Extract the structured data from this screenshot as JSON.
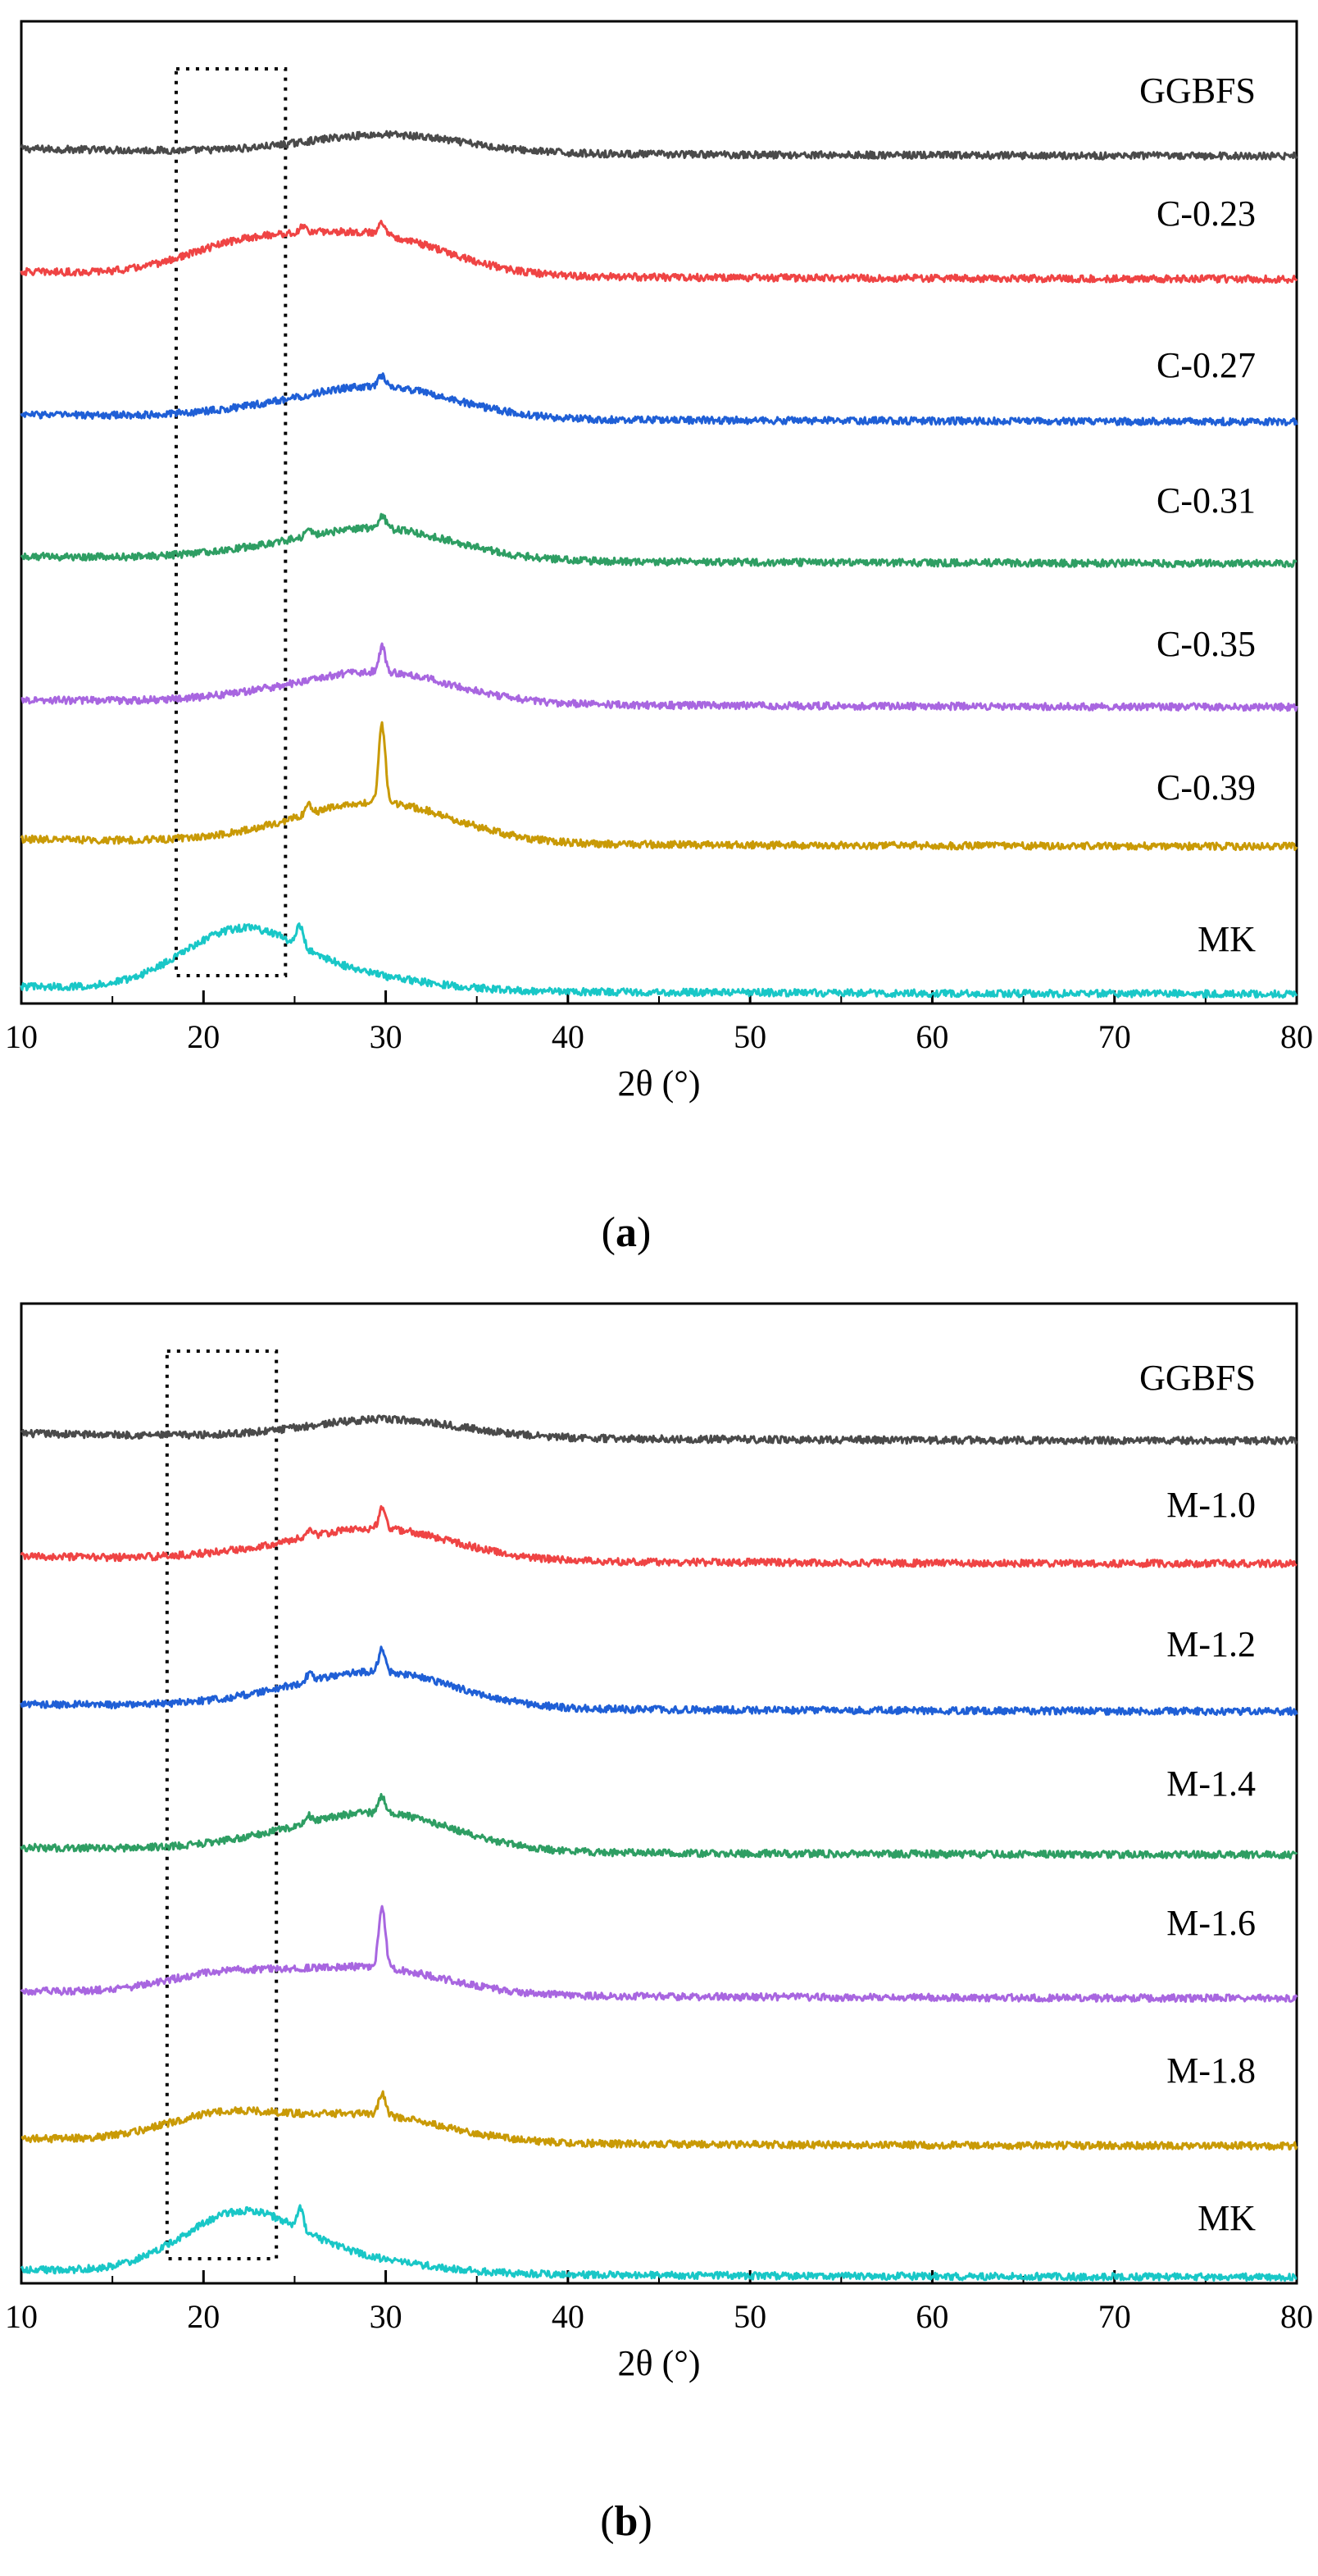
{
  "chart_data": [
    {
      "type": "line",
      "panel_label": "a",
      "xlabel": "2θ (°)",
      "ylabel": "",
      "xlim": [
        10,
        80
      ],
      "xticks": [
        10,
        20,
        30,
        40,
        50,
        60,
        70,
        80
      ],
      "y_ticks_shown": false,
      "grid": false,
      "legend": "none (labels placed beside each trace)",
      "highlight_box": {
        "x_range": [
          18.5,
          24.5
        ],
        "style": "dotted"
      },
      "series": [
        {
          "name": "GGBFS",
          "color": "#4a4a4a",
          "baseline": 0.0,
          "hump": {
            "center": 30,
            "height": 0.4
          },
          "low_hump": {
            "center": 22,
            "height": 0.0
          },
          "peaks": []
        },
        {
          "name": "C-0.23",
          "color": "#ef4444",
          "baseline": 0.0,
          "hump": {
            "center": 29,
            "height": 0.9
          },
          "low_hump": {
            "center": 22,
            "height": 0.55
          },
          "peaks": [
            {
              "x": 29.8,
              "height": 0.3
            },
            {
              "x": 25.5,
              "height": 0.15
            }
          ]
        },
        {
          "name": "C-0.27",
          "color": "#1f5fd6",
          "baseline": 0.0,
          "hump": {
            "center": 29.5,
            "height": 0.7
          },
          "low_hump": {
            "center": 22,
            "height": 0.08
          },
          "peaks": [
            {
              "x": 29.8,
              "height": 0.25
            }
          ]
        },
        {
          "name": "C-0.31",
          "color": "#2e9e63",
          "baseline": 0.0,
          "hump": {
            "center": 29.5,
            "height": 0.7
          },
          "low_hump": {
            "center": 22,
            "height": 0.1
          },
          "peaks": [
            {
              "x": 29.8,
              "height": 0.3
            },
            {
              "x": 25.8,
              "height": 0.15
            }
          ]
        },
        {
          "name": "C-0.35",
          "color": "#a866e0",
          "baseline": 0.0,
          "hump": {
            "center": 29.5,
            "height": 0.7
          },
          "low_hump": {
            "center": 22,
            "height": 0.08
          },
          "peaks": [
            {
              "x": 29.8,
              "height": 0.55
            }
          ]
        },
        {
          "name": "C-0.39",
          "color": "#c99a06",
          "baseline": 0.0,
          "hump": {
            "center": 29.5,
            "height": 0.9
          },
          "low_hump": {
            "center": 22,
            "height": 0.05
          },
          "peaks": [
            {
              "x": 29.8,
              "height": 1.7
            },
            {
              "x": 25.8,
              "height": 0.2
            }
          ]
        },
        {
          "name": "MK",
          "color": "#19c7c7",
          "baseline": 0.0,
          "hump": {
            "center": 28,
            "height": 0.3
          },
          "low_hump": {
            "center": 22,
            "height": 1.25
          },
          "peaks": [
            {
              "x": 25.3,
              "height": 0.45
            }
          ]
        }
      ]
    },
    {
      "type": "line",
      "panel_label": "b",
      "xlabel": "2θ (°)",
      "ylabel": "",
      "xlim": [
        10,
        80
      ],
      "xticks": [
        10,
        20,
        30,
        40,
        50,
        60,
        70,
        80
      ],
      "y_ticks_shown": false,
      "grid": false,
      "legend": "none (labels placed beside each trace)",
      "highlight_box": {
        "x_range": [
          18,
          24
        ],
        "style": "dotted"
      },
      "series": [
        {
          "name": "GGBFS",
          "color": "#4a4a4a",
          "baseline": 0.0,
          "hump": {
            "center": 30,
            "height": 0.4
          },
          "low_hump": {
            "center": 22,
            "height": 0.0
          },
          "peaks": []
        },
        {
          "name": "M-1.0",
          "color": "#ef4444",
          "baseline": 0.0,
          "hump": {
            "center": 29.5,
            "height": 0.7
          },
          "low_hump": {
            "center": 22,
            "height": 0.08
          },
          "peaks": [
            {
              "x": 29.8,
              "height": 0.45
            },
            {
              "x": 25.8,
              "height": 0.15
            }
          ]
        },
        {
          "name": "M-1.2",
          "color": "#1f5fd6",
          "baseline": 0.0,
          "hump": {
            "center": 29.5,
            "height": 0.8
          },
          "low_hump": {
            "center": 22,
            "height": 0.08
          },
          "peaks": [
            {
              "x": 29.8,
              "height": 0.5
            },
            {
              "x": 25.8,
              "height": 0.15
            }
          ]
        },
        {
          "name": "M-1.4",
          "color": "#2e9e63",
          "baseline": 0.0,
          "hump": {
            "center": 29.5,
            "height": 0.85
          },
          "low_hump": {
            "center": 22,
            "height": 0.1
          },
          "peaks": [
            {
              "x": 29.8,
              "height": 0.35
            },
            {
              "x": 25.8,
              "height": 0.15
            }
          ]
        },
        {
          "name": "M-1.6",
          "color": "#a866e0",
          "baseline": 0.0,
          "hump": {
            "center": 29,
            "height": 0.6
          },
          "low_hump": {
            "center": 21,
            "height": 0.4
          },
          "peaks": [
            {
              "x": 29.8,
              "height": 1.4
            }
          ]
        },
        {
          "name": "M-1.8",
          "color": "#c99a06",
          "baseline": 0.0,
          "hump": {
            "center": 29,
            "height": 0.6
          },
          "low_hump": {
            "center": 21,
            "height": 0.55
          },
          "peaks": [
            {
              "x": 29.8,
              "height": 0.5
            }
          ]
        },
        {
          "name": "MK",
          "color": "#19c7c7",
          "baseline": 0.0,
          "hump": {
            "center": 28,
            "height": 0.3
          },
          "low_hump": {
            "center": 22,
            "height": 1.25
          },
          "peaks": [
            {
              "x": 25.3,
              "height": 0.45
            }
          ]
        }
      ]
    }
  ]
}
